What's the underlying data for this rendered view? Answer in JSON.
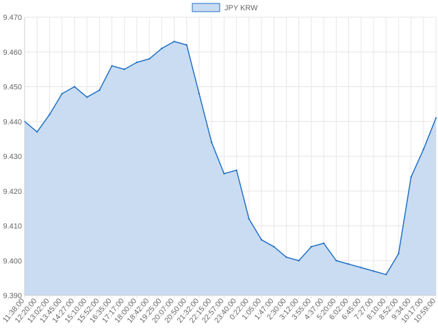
{
  "chart_data": {
    "type": "area",
    "legend": {
      "label": "JPY KRW",
      "position": "top-center"
    },
    "title": "",
    "xlabel": "",
    "ylabel": "",
    "ylim": [
      9.39,
      9.47
    ],
    "y_ticks": [
      "9.390",
      "9.400",
      "9.410",
      "9.420",
      "9.430",
      "9.440",
      "9.450",
      "9.460",
      "9.470"
    ],
    "x_tick_labels": [
      "11:38:00",
      "12:20:00",
      "13:02:00",
      "13:45:00",
      "14:27:00",
      "15:10:00",
      "15:52:00",
      "16:35:00",
      "17:17:00",
      "18:00:00",
      "18:42:00",
      "19:25:00",
      "20:07:00",
      "20:50:00",
      "21:32:00",
      "22:15:00",
      "22:57:00",
      "23:40:00",
      "0:22:00",
      "1:05:00",
      "1:47:00",
      "2:30:00",
      "3:12:00",
      "3:55:00",
      "4:37:00",
      "5:20:00",
      "6:02:00",
      "6:45:00",
      "7:27:00",
      "8:10:00",
      "8:52:00",
      "9:34:00",
      "10:17:00",
      "10:59:00"
    ],
    "grid": true,
    "colors": {
      "line": "#1f6fc5",
      "fill": "#c9dcf2",
      "grid": "#e6e6e6",
      "text": "#666666"
    },
    "series": [
      {
        "name": "JPY KRW",
        "x": [
          "11:38:00",
          "12:20:00",
          "13:02:00",
          "13:45:00",
          "14:27:00",
          "15:10:00",
          "15:52:00",
          "16:35:00",
          "17:17:00",
          "18:00:00",
          "18:42:00",
          "19:25:00",
          "20:07:00",
          "20:50:00",
          "21:32:00",
          "22:15:00",
          "22:57:00",
          "23:40:00",
          "0:22:00",
          "1:05:00",
          "1:47:00",
          "2:30:00",
          "3:12:00",
          "3:55:00",
          "4:37:00",
          "5:20:00",
          "6:02:00",
          "6:45:00",
          "7:27:00",
          "8:10:00",
          "8:52:00",
          "9:34:00",
          "10:17:00",
          "10:59:00"
        ],
        "values": [
          9.44,
          9.437,
          9.442,
          9.448,
          9.45,
          9.447,
          9.449,
          9.456,
          9.455,
          9.457,
          9.458,
          9.461,
          9.463,
          9.462,
          9.448,
          9.434,
          9.425,
          9.426,
          9.412,
          9.406,
          9.404,
          9.401,
          9.4,
          9.404,
          9.405,
          9.4,
          9.399,
          9.398,
          9.397,
          9.396,
          9.402,
          9.424,
          9.432,
          9.441
        ]
      }
    ]
  }
}
